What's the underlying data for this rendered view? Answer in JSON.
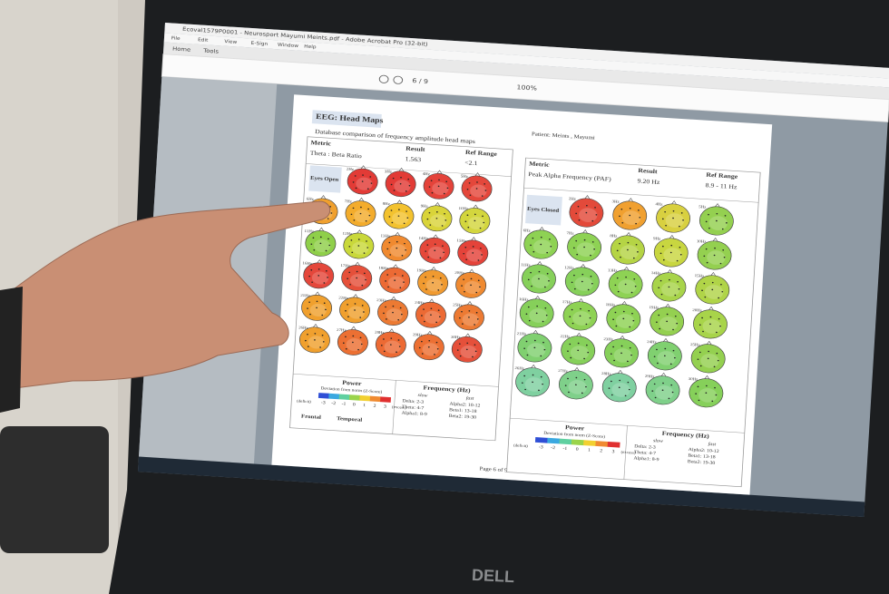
{
  "window": {
    "title": "Ecoval1579P0001 - Neurosport Mayumi Meints.pdf - Adobe Acrobat Pro (32-bit)",
    "menu": [
      "File",
      "Edit",
      "View",
      "E-Sign",
      "Window",
      "Help"
    ],
    "tabs": [
      "Home",
      "Tools"
    ],
    "page_box": "6 / 9",
    "zoom": "100%"
  },
  "document": {
    "title": "EEG: Head Maps",
    "patient": "Patient: Meints , Mayumi",
    "subtitle": "Database comparison of frequency amplitude head maps",
    "page_footer": "Page 6 of 9",
    "panels": [
      {
        "metric_label": "Metric",
        "metric": "Theta : Beta Ratio",
        "result_label": "Result",
        "result": "1.563",
        "ref_label": "Ref Range",
        "ref": "<2.1",
        "condition": "Eyes Open",
        "heads": [
          {
            "label": "2Hz",
            "color": "#e23b36"
          },
          {
            "label": "3Hz",
            "color": "#e23b36"
          },
          {
            "label": "4Hz",
            "color": "#e4433a"
          },
          {
            "label": "5Hz",
            "color": "#e4473b"
          },
          {
            "label": "6Hz",
            "color": "#f0a02e"
          },
          {
            "label": "7Hz",
            "color": "#f3ac2c"
          },
          {
            "label": "8Hz",
            "color": "#f3c22f"
          },
          {
            "label": "9Hz",
            "color": "#d9d43a"
          },
          {
            "label": "10Hz",
            "color": "#d3d63e"
          },
          {
            "label": "11Hz",
            "color": "#8fcf4a"
          },
          {
            "label": "12Hz",
            "color": "#c9d83a"
          },
          {
            "label": "13Hz",
            "color": "#f08a30"
          },
          {
            "label": "14Hz",
            "color": "#e5483a"
          },
          {
            "label": "15Hz",
            "color": "#e4433a"
          },
          {
            "label": "16Hz",
            "color": "#e4473b"
          },
          {
            "label": "17Hz",
            "color": "#e5503a"
          },
          {
            "label": "18Hz",
            "color": "#ec6a34"
          },
          {
            "label": "19Hz",
            "color": "#f09a30"
          },
          {
            "label": "20Hz",
            "color": "#ef8a31"
          },
          {
            "label": "21Hz",
            "color": "#f0a02e"
          },
          {
            "label": "22Hz",
            "color": "#f0a02e"
          },
          {
            "label": "23Hz",
            "color": "#ec7a33"
          },
          {
            "label": "24Hz",
            "color": "#ec6a34"
          },
          {
            "label": "25Hz",
            "color": "#ec7a33"
          },
          {
            "label": "26Hz",
            "color": "#f0a02e"
          },
          {
            "label": "27Hz",
            "color": "#ec7033"
          },
          {
            "label": "28Hz",
            "color": "#ec6a34"
          },
          {
            "label": "29Hz",
            "color": "#ec7033"
          },
          {
            "label": "30Hz",
            "color": "#e5503a"
          }
        ]
      },
      {
        "metric_label": "Metric",
        "metric": "Peak Alpha Frequency (PAF)",
        "result_label": "Result",
        "result": "9.20 Hz",
        "ref_label": "Ref Range",
        "ref": "8.9 - 11 Hz",
        "condition": "Eyes Closed",
        "heads": [
          {
            "label": "2Hz",
            "color": "#e34a3a"
          },
          {
            "label": "3Hz",
            "color": "#f0a030"
          },
          {
            "label": "4Hz",
            "color": "#d8d040"
          },
          {
            "label": "5Hz",
            "color": "#94d050"
          },
          {
            "label": "6Hz",
            "color": "#8ed254"
          },
          {
            "label": "7Hz",
            "color": "#8ed254"
          },
          {
            "label": "8Hz",
            "color": "#b5d445"
          },
          {
            "label": "9Hz",
            "color": "#c8d640"
          },
          {
            "label": "10Hz",
            "color": "#94d050"
          },
          {
            "label": "11Hz",
            "color": "#86d05a"
          },
          {
            "label": "12Hz",
            "color": "#86d05a"
          },
          {
            "label": "13Hz",
            "color": "#8ed254"
          },
          {
            "label": "14Hz",
            "color": "#a8d44a"
          },
          {
            "label": "15Hz",
            "color": "#b0d448"
          },
          {
            "label": "16Hz",
            "color": "#86d05a"
          },
          {
            "label": "17Hz",
            "color": "#8ed254"
          },
          {
            "label": "18Hz",
            "color": "#8ed254"
          },
          {
            "label": "19Hz",
            "color": "#94d050"
          },
          {
            "label": "20Hz",
            "color": "#a8d44a"
          },
          {
            "label": "21Hz",
            "color": "#80d070"
          },
          {
            "label": "22Hz",
            "color": "#86d05a"
          },
          {
            "label": "23Hz",
            "color": "#86d05a"
          },
          {
            "label": "24Hz",
            "color": "#80d070"
          },
          {
            "label": "25Hz",
            "color": "#94d050"
          },
          {
            "label": "26Hz",
            "color": "#7fd0a0"
          },
          {
            "label": "27Hz",
            "color": "#7fd08a"
          },
          {
            "label": "28Hz",
            "color": "#7fd0a0"
          },
          {
            "label": "29Hz",
            "color": "#7fd08a"
          },
          {
            "label": "30Hz",
            "color": "#86d05a"
          }
        ]
      }
    ],
    "legend": {
      "title": "Power",
      "subtitle": "Deviation from norm (Z-Score)",
      "deficit": "(deficit)",
      "excess": "(excess)",
      "ticks": [
        -3,
        -2,
        -1,
        0,
        1,
        2,
        3
      ],
      "colors": [
        "#2f4fd6",
        "#3aa8e0",
        "#5fd0a0",
        "#9ad44a",
        "#f2d030",
        "#f08a30",
        "#e03030"
      ]
    },
    "frequency": {
      "title": "Frequency (Hz)",
      "slow": "slow",
      "fast": "fast",
      "bands": [
        "Delta: 2-3",
        "Theta: 4-7",
        "Alpha1: 8-9",
        "Alpha2: 10-12",
        "Beta1: 13-18",
        "Beta2: 19-30"
      ]
    },
    "regions": [
      "Frontal",
      "Temporal"
    ]
  },
  "monitor": {
    "brand": "DELL"
  }
}
